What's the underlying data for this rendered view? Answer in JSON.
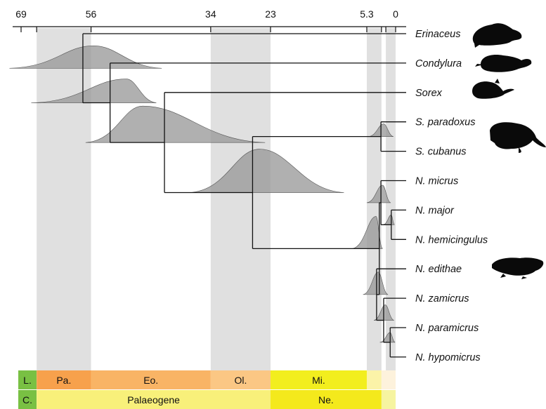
{
  "colors": {
    "shade": "#e0e0e0",
    "density_fill": "#9a9a9a",
    "density_overlap": "#7a7a7a",
    "branch": "#111111",
    "paleocene": "#f7a14c",
    "eocene": "#f9b465",
    "oligocene": "#fbc784",
    "miocene": "#f2ee1e",
    "pliocene": "#fbf3a8",
    "pleistocene": "#fdf2dc",
    "palaeogene": "#f8f07a",
    "neogene": "#f4e91c",
    "quaternary": "#f6f4a0",
    "label_green": "#79c043"
  },
  "time_axis": {
    "ticks": [
      {
        "age": 69,
        "label": "69"
      },
      {
        "age": 56,
        "label": "56"
      },
      {
        "age": 34,
        "label": "34"
      },
      {
        "age": 23,
        "label": "23"
      },
      {
        "age": 5.3,
        "label": "5.3"
      },
      {
        "age": 0,
        "label": "0"
      }
    ],
    "minor_ticks": [
      66,
      2.6,
      1.8
    ]
  },
  "shaded_intervals": [
    [
      66,
      56
    ],
    [
      34,
      23
    ],
    [
      5.3,
      2.6
    ],
    [
      1.8,
      0
    ]
  ],
  "taxa": [
    {
      "id": "erinaceus",
      "label": "Erinaceus",
      "silhouette": "hedgehog"
    },
    {
      "id": "condylura",
      "label": "Condylura",
      "silhouette": "star-nosed-mole"
    },
    {
      "id": "sorex",
      "label": "Sorex",
      "silhouette": "shrew"
    },
    {
      "id": "s_paradoxus",
      "label": "S. paradoxus",
      "silhouette": "solenodon"
    },
    {
      "id": "s_cubanus",
      "label": "S. cubanus",
      "silhouette": ""
    },
    {
      "id": "n_micrus",
      "label": "N. micrus",
      "silhouette": ""
    },
    {
      "id": "n_major",
      "label": "N. major",
      "silhouette": ""
    },
    {
      "id": "n_hemicingulus",
      "label": "N. hemicingulus",
      "silhouette": ""
    },
    {
      "id": "n_edithae",
      "label": "N. edithae",
      "silhouette": "nesophontes"
    },
    {
      "id": "n_zamicrus",
      "label": "N. zamicrus",
      "silhouette": ""
    },
    {
      "id": "n_paramicrus",
      "label": "N. paramicrus",
      "silhouette": ""
    },
    {
      "id": "n_hypomicrus",
      "label": "N. hypomicrus",
      "silhouette": ""
    }
  ],
  "nodes": [
    {
      "id": "n_root",
      "age": 57.5,
      "children": [
        "erinaceus",
        "n_eul"
      ]
    },
    {
      "id": "n_eul",
      "age": 52.5,
      "children": [
        "condylura",
        "n_sor"
      ]
    },
    {
      "id": "n_sor",
      "age": 42.5,
      "children": [
        "sorex",
        "n_sol"
      ]
    },
    {
      "id": "n_sol",
      "age": 26.3,
      "children": [
        "n_solen",
        "n_neso"
      ]
    },
    {
      "id": "n_solen",
      "age": 2.7,
      "children": [
        "s_paradoxus",
        "s_cubanus"
      ]
    },
    {
      "id": "n_neso",
      "age": 3.0,
      "children": [
        "n_a",
        "n_b"
      ]
    },
    {
      "id": "n_a",
      "age": 2.7,
      "children": [
        "n_micrus",
        "n_c"
      ]
    },
    {
      "id": "n_c",
      "age": 0.8,
      "children": [
        "n_major",
        "n_hemicingulus"
      ]
    },
    {
      "id": "n_b",
      "age": 3.5,
      "children": [
        "n_edithae",
        "n_d"
      ]
    },
    {
      "id": "n_d",
      "age": 2.2,
      "children": [
        "n_zamicrus",
        "n_e"
      ]
    },
    {
      "id": "n_e",
      "age": 1.0,
      "children": [
        "n_paramicrus",
        "n_hypomicrus"
      ]
    }
  ],
  "densities": [
    {
      "node": "n_root",
      "peak": 55.5,
      "left": 71,
      "right": 43,
      "height": 32
    },
    {
      "node": "n_eul",
      "peak": 49.5,
      "left": 67,
      "right": 44,
      "height": 34
    },
    {
      "node": "n_sor",
      "peak": 46.5,
      "left": 57,
      "right": 24,
      "height": 52
    },
    {
      "node": "n_sol",
      "peak": 25.0,
      "left": 38,
      "right": 9.5,
      "height": 62
    },
    {
      "node": "n_solen",
      "peak": 2.2,
      "left": 5.0,
      "right": 0.4,
      "height": 18
    },
    {
      "node": "n_neso",
      "peak": 3.6,
      "left": 8.0,
      "right": 2.4,
      "height": 46
    },
    {
      "node": "n_a",
      "peak": 2.4,
      "left": 5.3,
      "right": 0.9,
      "height": 25
    },
    {
      "node": "n_c",
      "peak": 0.8,
      "left": 2.3,
      "right": 0.2,
      "height": 14
    },
    {
      "node": "n_b",
      "peak": 3.2,
      "left": 6.0,
      "right": 1.4,
      "height": 32
    },
    {
      "node": "n_d",
      "peak": 1.9,
      "left": 4.0,
      "right": 0.3,
      "height": 22
    },
    {
      "node": "n_e",
      "peak": 1.0,
      "left": 2.9,
      "right": 0.1,
      "height": 14
    }
  ],
  "strat_rows": [
    {
      "id": "epochs",
      "label": "L.",
      "cells": [
        {
          "from": 66,
          "to": 56,
          "label": "Pa.",
          "color": "#f7a14c"
        },
        {
          "from": 56,
          "to": 34,
          "label": "Eo.",
          "color": "#f9b465"
        },
        {
          "from": 34,
          "to": 23,
          "label": "Ol.",
          "color": "#fbc784"
        },
        {
          "from": 23,
          "to": 5.3,
          "label": "Mi.",
          "color": "#f2ee1e"
        },
        {
          "from": 5.3,
          "to": 2.6,
          "label": "",
          "color": "#fbf3a8"
        },
        {
          "from": 2.6,
          "to": 0,
          "label": "",
          "color": "#fdf2dc"
        }
      ]
    },
    {
      "id": "periods",
      "label": "C.",
      "cells": [
        {
          "from": 66,
          "to": 23,
          "label": "Palaeogene",
          "color": "#f8f07a"
        },
        {
          "from": 23,
          "to": 2.6,
          "label": "Ne.",
          "color": "#f4e91c"
        },
        {
          "from": 2.6,
          "to": 0,
          "label": "",
          "color": "#f6f4a0"
        }
      ]
    }
  ]
}
